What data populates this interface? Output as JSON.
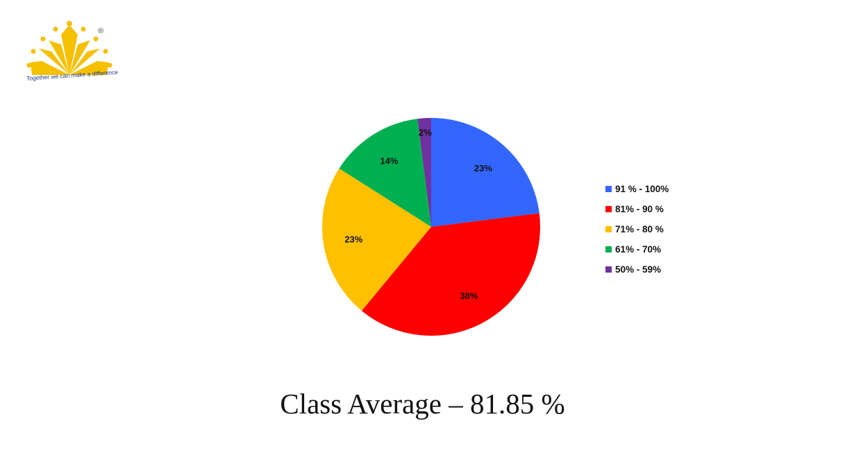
{
  "logo": {
    "tagline": "Together we can make a difference",
    "registered_mark": "®",
    "icon": "sun-crown-logo",
    "color": "#F5C000"
  },
  "chart_data": {
    "type": "pie",
    "categories": [
      "91 % - 100%",
      "81% - 90 %",
      "71% - 80 %",
      "61% - 70%",
      "50% - 59%"
    ],
    "values": [
      23,
      38,
      23,
      14,
      2
    ],
    "data_labels": [
      "23%",
      "38%",
      "23%",
      "14%",
      "2%"
    ],
    "colors": [
      "#3366FF",
      "#FF0000",
      "#FFC000",
      "#00B050",
      "#7030A0"
    ],
    "legend_position": "right",
    "start_angle": "top",
    "direction": "clockwise"
  },
  "footer": {
    "title": "Class Average – 81.85 %"
  }
}
